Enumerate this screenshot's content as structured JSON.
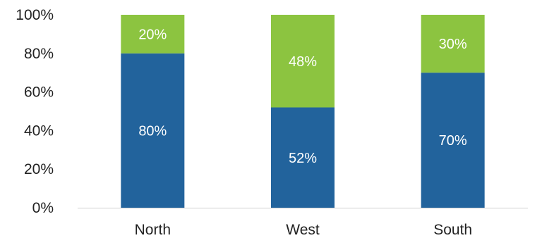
{
  "chart_data": {
    "type": "bar",
    "stacked": true,
    "percent_stacked": true,
    "categories": [
      "North",
      "West",
      "South"
    ],
    "series": [
      {
        "values": [
          80,
          52,
          70
        ],
        "labels": [
          "80%",
          "52%",
          "70%"
        ],
        "color": "#22639c"
      },
      {
        "values": [
          20,
          48,
          30
        ],
        "labels": [
          "20%",
          "48%",
          "30%"
        ],
        "color": "#8cc440"
      }
    ],
    "y_ticks": [
      "0%",
      "20%",
      "40%",
      "60%",
      "80%",
      "100%"
    ],
    "ylim": [
      0,
      100
    ],
    "grid": false,
    "legend": "none",
    "axis_color": "#d0d0d0"
  }
}
